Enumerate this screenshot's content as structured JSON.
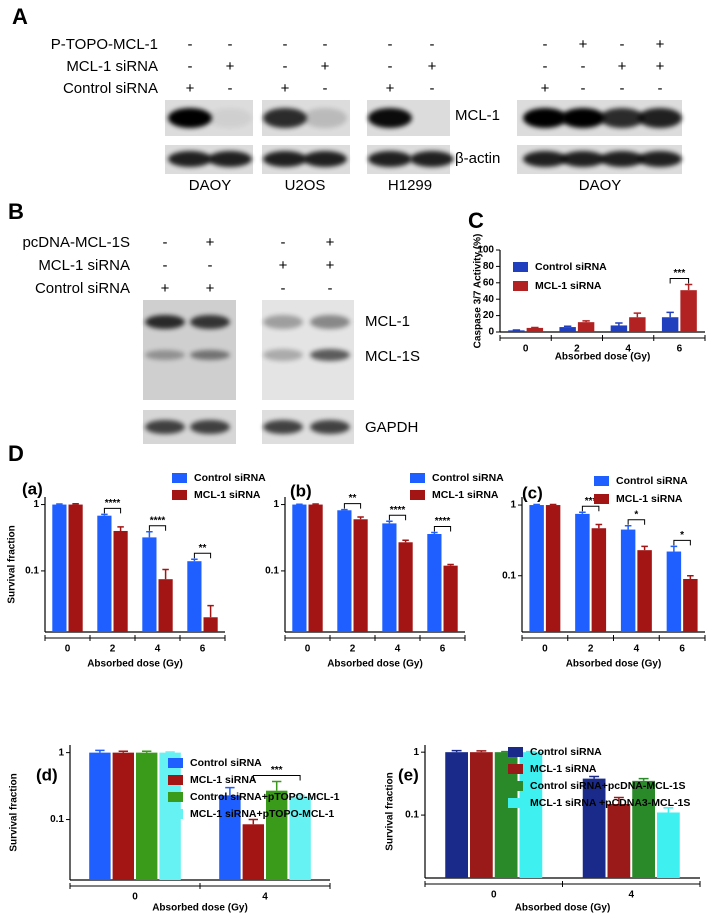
{
  "panel_a": {
    "label": "A",
    "conditions": [
      {
        "name": "P-TOPO-MCL-1",
        "signs": [
          "-",
          "-",
          "-",
          "-",
          "-",
          "-",
          "-",
          "+",
          "-",
          "+"
        ]
      },
      {
        "name": "MCL-1 siRNA",
        "signs": [
          "-",
          "+",
          "-",
          "+",
          "-",
          "+",
          "-",
          "-",
          "+",
          "+"
        ]
      },
      {
        "name": "Control siRNA",
        "signs": [
          "+",
          "-",
          "+",
          "-",
          "+",
          "-",
          "+",
          "-",
          "-",
          "-"
        ]
      }
    ],
    "bands": [
      "MCL-1",
      "β-actin"
    ],
    "cell_lines": [
      "DAOY",
      "U2OS",
      "H1299",
      "DAOY"
    ]
  },
  "panel_b": {
    "label": "B",
    "conditions": [
      {
        "name": "pcDNA-MCL-1S",
        "signs": [
          "-",
          "+",
          "-",
          "+"
        ]
      },
      {
        "name": "MCL-1 siRNA",
        "signs": [
          "-",
          "-",
          "+",
          "+"
        ]
      },
      {
        "name": "Control siRNA",
        "signs": [
          "+",
          "+",
          "-",
          "-"
        ]
      }
    ],
    "bands": [
      "MCL-1",
      "MCL-1S",
      "GAPDH"
    ]
  },
  "panel_c_label": "C",
  "panel_d_label": "D",
  "chart_data": [
    {
      "type": "bar",
      "ylabel": "Caspase 3/7 Activity (%)",
      "xlabel": "Absorbed dose (Gy)",
      "categories": [
        "0",
        "2",
        "4",
        "6"
      ],
      "series": [
        {
          "name": "Control siRNA",
          "color": "#1f3fbf",
          "values": [
            2,
            6,
            8,
            18
          ],
          "errors": [
            0.5,
            1,
            3,
            6
          ]
        },
        {
          "name": "MCL-1 siRNA",
          "color": "#b22222",
          "values": [
            5,
            12,
            18,
            51
          ],
          "errors": [
            0.5,
            1.5,
            5,
            7
          ]
        }
      ],
      "ylim": [
        0,
        100
      ],
      "yticks": [
        0,
        20,
        40,
        60,
        80,
        100
      ],
      "log_scale": false,
      "annotations": [
        null,
        null,
        null,
        "***"
      ]
    },
    {
      "type": "bar",
      "title": "(a)",
      "ylabel": "Survival fraction",
      "xlabel": "Absorbed dose (Gy)",
      "categories": [
        "0",
        "2",
        "4",
        "6"
      ],
      "series": [
        {
          "name": "Control siRNA",
          "color": "#1f5fff",
          "values": [
            1,
            0.68,
            0.32,
            0.14
          ],
          "errors": [
            0.02,
            0.03,
            0.07,
            0.01
          ]
        },
        {
          "name": "MCL-1 siRNA",
          "color": "#a31515",
          "values": [
            1,
            0.4,
            0.075,
            0.02
          ],
          "errors": [
            0.03,
            0.06,
            0.03,
            0.01
          ]
        }
      ],
      "ylim": [
        0.012,
        1.3
      ],
      "yticks": [
        0.1,
        1
      ],
      "log_scale": true,
      "annotations": [
        null,
        "****",
        "****",
        "**"
      ]
    },
    {
      "type": "bar",
      "title": "(b)",
      "xlabel": "Absorbed dose (Gy)",
      "categories": [
        "0",
        "2",
        "4",
        "6"
      ],
      "series": [
        {
          "name": "Control siRNA",
          "color": "#1f5fff",
          "values": [
            1,
            0.82,
            0.52,
            0.36
          ],
          "errors": [
            0.01,
            0.02,
            0.04,
            0.02
          ]
        },
        {
          "name": "MCL-1 siRNA",
          "color": "#a31515",
          "values": [
            1,
            0.6,
            0.27,
            0.12
          ],
          "errors": [
            0.02,
            0.05,
            0.02,
            0.005
          ]
        }
      ],
      "ylim": [
        0.012,
        1.3
      ],
      "yticks": [
        0.1,
        1
      ],
      "log_scale": true,
      "annotations": [
        null,
        "**",
        "****",
        "****"
      ]
    },
    {
      "type": "bar",
      "title": "(c)",
      "xlabel": "Absorbed dose (Gy)",
      "categories": [
        "0",
        "2",
        "4",
        "6"
      ],
      "series": [
        {
          "name": "Control siRNA",
          "color": "#1f5fff",
          "values": [
            1,
            0.75,
            0.45,
            0.22
          ],
          "errors": [
            0.02,
            0.04,
            0.06,
            0.04
          ]
        },
        {
          "name": "MCL-1 siRNA",
          "color": "#a31515",
          "values": [
            1,
            0.47,
            0.23,
            0.09
          ],
          "errors": [
            0.02,
            0.06,
            0.03,
            0.01
          ]
        }
      ],
      "ylim": [
        0.016,
        1.3
      ],
      "yticks": [
        0.1,
        1
      ],
      "log_scale": true,
      "annotations": [
        null,
        "***",
        "*",
        "*"
      ]
    },
    {
      "type": "bar",
      "title": "(d)",
      "ylabel": "Survival fraction",
      "xlabel": "Absorbed dose (Gy)",
      "categories": [
        "0",
        "4"
      ],
      "series": [
        {
          "name": "Control siRNA",
          "color": "#1f5fff",
          "values": [
            1,
            0.23
          ],
          "errors": [
            0.08,
            0.07
          ]
        },
        {
          "name": "MCL-1 siRNA",
          "color": "#a31515",
          "values": [
            1,
            0.085
          ],
          "errors": [
            0.05,
            0.015
          ]
        },
        {
          "name": "Control siRNA+pTOPO-MCL-1",
          "color": "#3a9a1a",
          "values": [
            1,
            0.27
          ],
          "errors": [
            0.05,
            0.1
          ]
        },
        {
          "name": "MCL-1 siRNA+pTOPO-MCL-1",
          "color": "#66f2f2",
          "values": [
            1,
            0.22
          ],
          "errors": [
            0.02,
            0.01
          ]
        }
      ],
      "ylim": [
        0.0125,
        1.3
      ],
      "yticks": [
        0.1,
        1
      ],
      "log_scale": true,
      "annotations": [
        null,
        "***"
      ]
    },
    {
      "type": "bar",
      "title": "(e)",
      "ylabel": "Survival fraction",
      "xlabel": "Absorbed dose (Gy)",
      "categories": [
        "0",
        "4"
      ],
      "series": [
        {
          "name": "Control siRNA",
          "color": "#1a2a8a",
          "values": [
            1,
            0.38
          ],
          "errors": [
            0.06,
            0.03
          ]
        },
        {
          "name": "MCL-1 siRNA",
          "color": "#9a1a1a",
          "values": [
            1,
            0.15
          ],
          "errors": [
            0.05,
            0.04
          ]
        },
        {
          "name": "Control siRNA+pcDNA-MCL-1S",
          "color": "#2a8a2a",
          "values": [
            1,
            0.35
          ],
          "errors": [
            0.02,
            0.03
          ]
        },
        {
          "name": "MCL-1 siRNA +pCDNA3-MCL-1S",
          "color": "#3ff0f0",
          "values": [
            1,
            0.11
          ],
          "errors": [
            0.02,
            0.02
          ]
        }
      ],
      "ylim": [
        0.01,
        1.3
      ],
      "yticks": [
        0.1,
        1
      ],
      "log_scale": true,
      "annotations": [
        null,
        null
      ]
    }
  ]
}
